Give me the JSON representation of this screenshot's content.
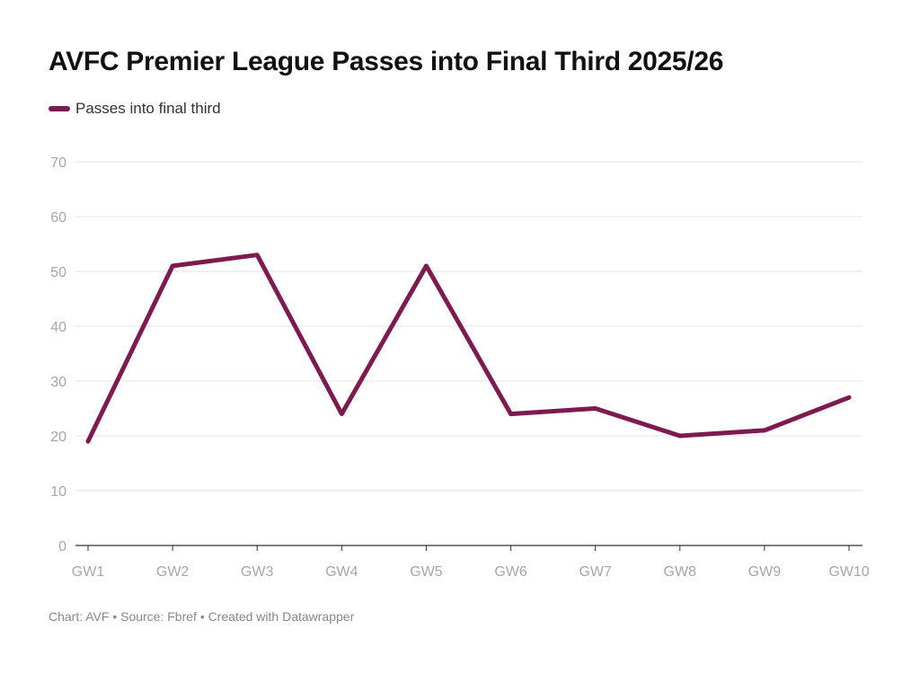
{
  "chart_data": {
    "type": "line",
    "title": "AVFC Premier League Passes into Final Third 2025/26",
    "categories": [
      "GW1",
      "GW2",
      "GW3",
      "GW4",
      "GW5",
      "GW6",
      "GW7",
      "GW8",
      "GW9",
      "GW10"
    ],
    "series": [
      {
        "name": "Passes into final third",
        "color": "#7e1a4f",
        "values": [
          19,
          51,
          53,
          24,
          51,
          24,
          25,
          20,
          21,
          27
        ]
      }
    ],
    "ylim": [
      0,
      70
    ],
    "yticks": [
      0,
      10,
      20,
      30,
      40,
      50,
      60,
      70
    ],
    "grid": true,
    "legend_position": "top-left",
    "xlabel": "",
    "ylabel": ""
  },
  "footer": "Chart: AVF • Source: Fbref • Created with Datawrapper"
}
